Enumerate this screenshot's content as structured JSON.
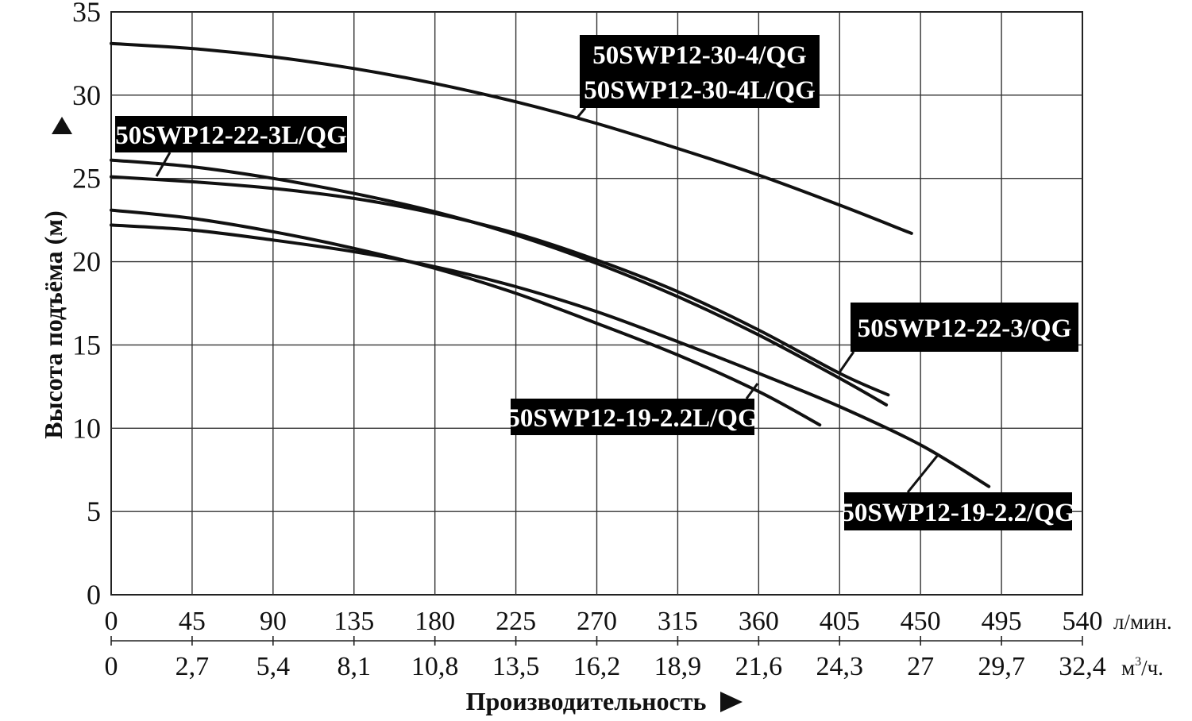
{
  "chart_data": {
    "type": "line",
    "ylabel": "Высота подъёма (м)",
    "xlabel": "Производительность",
    "ylim": [
      0,
      35
    ],
    "yticks": [
      "0",
      "5",
      "10",
      "15",
      "20",
      "25",
      "30",
      "35"
    ],
    "xlim": [
      0,
      540
    ],
    "x_unit": "л/мин.",
    "xticks": [
      "0",
      "45",
      "90",
      "135",
      "180",
      "225",
      "270",
      "315",
      "360",
      "405",
      "450",
      "495",
      "540"
    ],
    "x2_unit_base": "м",
    "x2_unit_sup": "3",
    "x2_unit_rest": "/ч.",
    "x2ticks": [
      "0",
      "2,7",
      "5,4",
      "8,1",
      "10,8",
      "13,5",
      "16,2",
      "18,9",
      "21,6",
      "24,3",
      "27",
      "29,7",
      "32,4"
    ],
    "grid": true,
    "series": [
      {
        "labels": [
          "50SWP12-30-4/QG",
          "50SWP12-30-4L/QG"
        ],
        "x": [
          0,
          45,
          90,
          135,
          180,
          225,
          270,
          315,
          360,
          405,
          445
        ],
        "y": [
          33.1,
          32.8,
          32.3,
          31.6,
          30.7,
          29.6,
          28.3,
          26.8,
          25.2,
          23.4,
          21.7
        ]
      },
      {
        "labels": [
          "50SWP12-22-3L/QG"
        ],
        "x": [
          0,
          45,
          90,
          135,
          180,
          225,
          270,
          315,
          360,
          405,
          431
        ],
        "y": [
          26.1,
          25.7,
          25.0,
          24.1,
          23.0,
          21.6,
          19.9,
          17.9,
          15.6,
          13.0,
          11.4
        ]
      },
      {
        "labels": [
          "50SWP12-22-3/QG"
        ],
        "x": [
          0,
          45,
          90,
          135,
          180,
          225,
          270,
          315,
          360,
          405,
          432
        ],
        "y": [
          25.1,
          24.8,
          24.4,
          23.8,
          22.9,
          21.7,
          20.1,
          18.2,
          15.9,
          13.3,
          12.0
        ]
      },
      {
        "labels": [
          "50SWP12-19-2.2L/QG"
        ],
        "x": [
          0,
          45,
          90,
          135,
          180,
          225,
          270,
          315,
          360,
          394
        ],
        "y": [
          23.1,
          22.6,
          21.8,
          20.8,
          19.6,
          18.1,
          16.3,
          14.4,
          12.2,
          10.2
        ]
      },
      {
        "labels": [
          "50SWP12-19-2.2/QG"
        ],
        "x": [
          0,
          45,
          90,
          135,
          180,
          225,
          270,
          315,
          360,
          405,
          450,
          488
        ],
        "y": [
          22.2,
          21.9,
          21.3,
          20.6,
          19.7,
          18.5,
          17.0,
          15.2,
          13.3,
          11.3,
          9.0,
          6.5
        ]
      }
    ]
  }
}
